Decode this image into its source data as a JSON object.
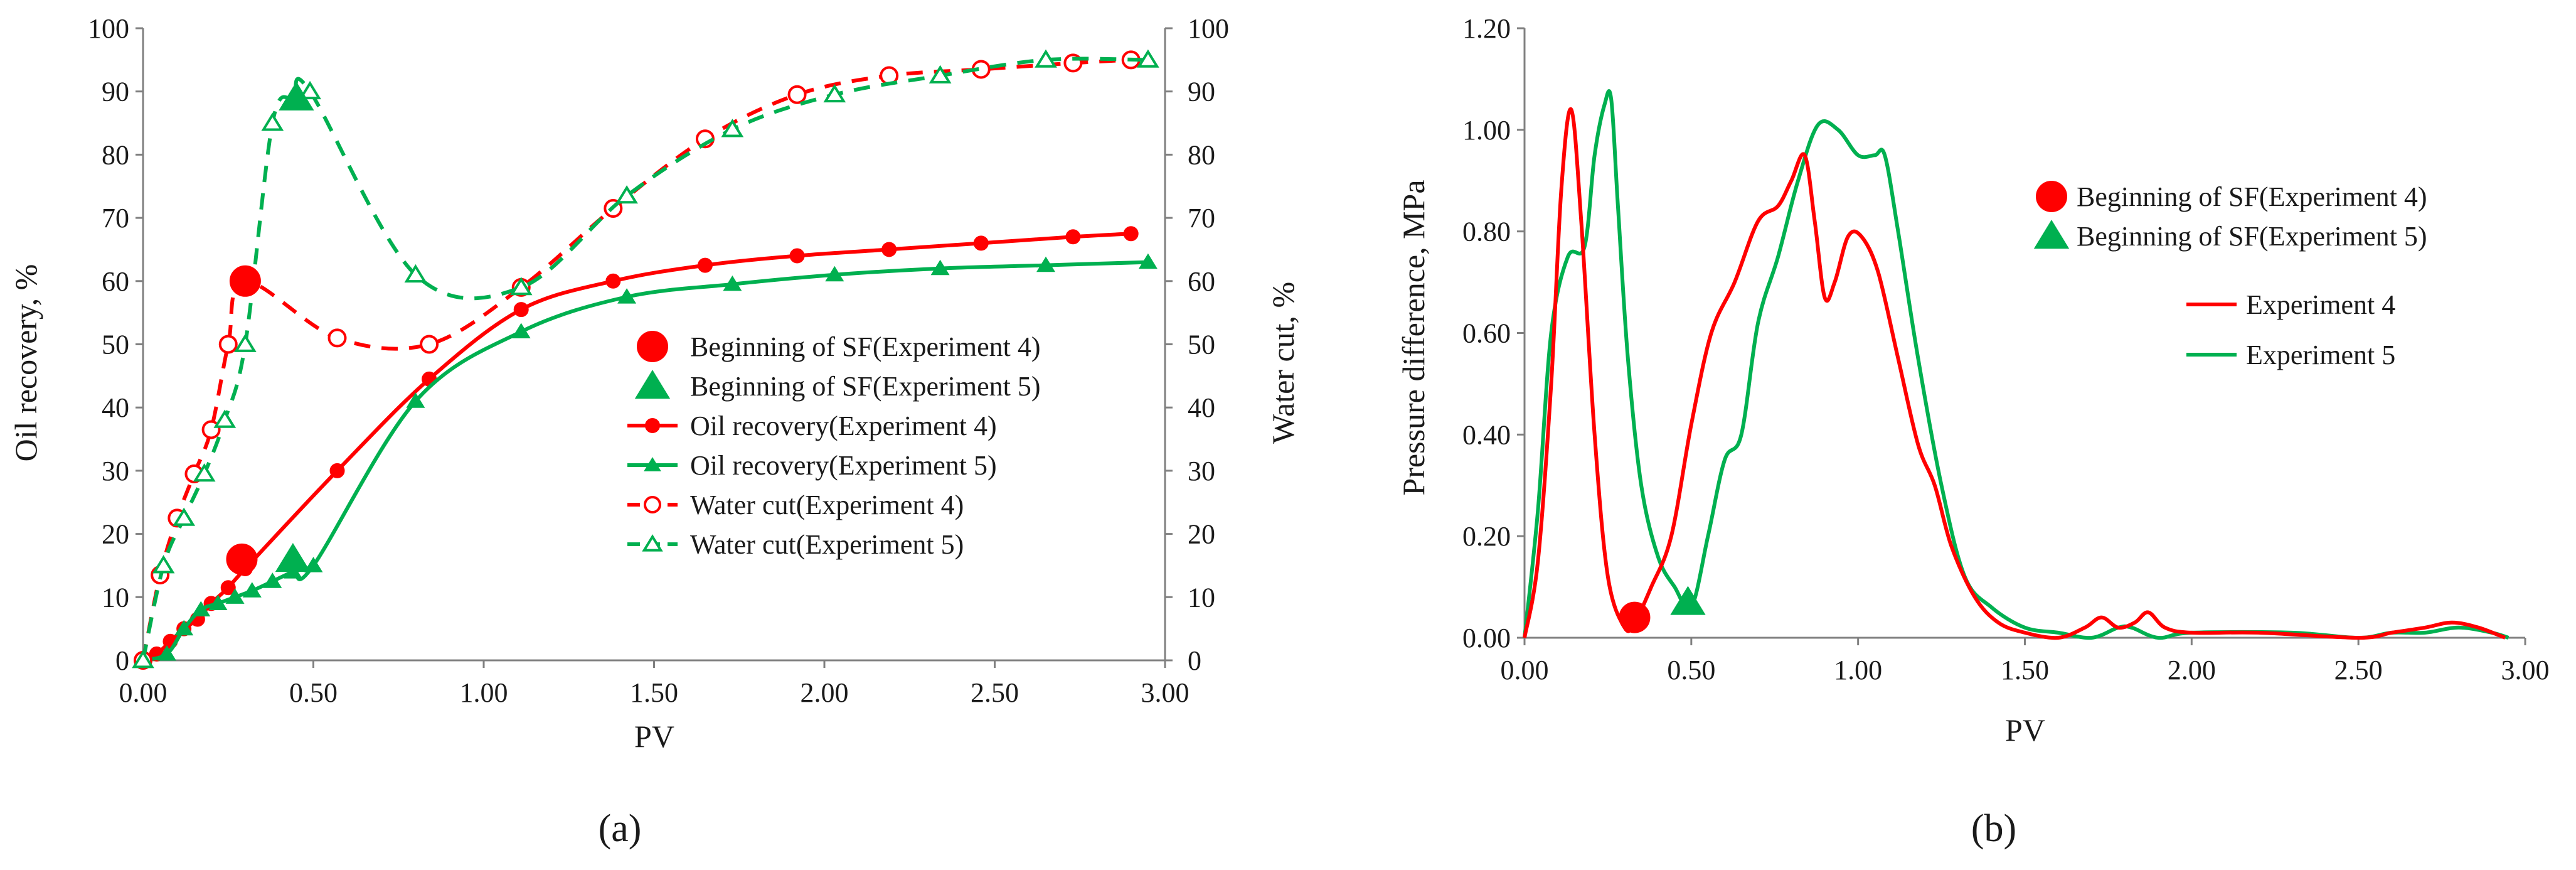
{
  "colors": {
    "red": "#ff0000",
    "green": "#00b050",
    "axis": "#808080",
    "text": "#1a1a1a"
  },
  "chart_data": [
    {
      "type": "line",
      "panel_label": "(a)",
      "xlabel": "PV",
      "ylabel": "Oil recovery, %",
      "y2label": "Water cut, %",
      "xlim": [
        0,
        3
      ],
      "ylim": [
        0,
        100
      ],
      "y2lim": [
        0,
        100
      ],
      "xticks": [
        "0.00",
        "0.50",
        "1.00",
        "1.50",
        "2.00",
        "2.50",
        "3.00"
      ],
      "yticks": [
        "0",
        "10",
        "20",
        "30",
        "40",
        "50",
        "60",
        "70",
        "80",
        "90",
        "100"
      ],
      "y2ticks": [
        "0",
        "10",
        "20",
        "30",
        "40",
        "50",
        "60",
        "70",
        "80",
        "90",
        "100"
      ],
      "grid": false,
      "legend_position": "center-right",
      "series": [
        {
          "name": "Oil recovery(Experiment 4)",
          "axis": "left",
          "color": "#ff0000",
          "style": "solid",
          "marker": "filled-circle",
          "x": [
            0.0,
            0.04,
            0.08,
            0.12,
            0.16,
            0.2,
            0.25,
            0.3,
            0.57,
            0.84,
            1.11,
            1.38,
            1.65,
            1.92,
            2.19,
            2.46,
            2.73,
            2.9
          ],
          "y": [
            0,
            1,
            3,
            5,
            6.5,
            9,
            11.5,
            14.5,
            30,
            44.5,
            55.5,
            60,
            62.5,
            64,
            65,
            66,
            67,
            67.5
          ]
        },
        {
          "name": "Oil recovery(Experiment 5)",
          "axis": "left",
          "color": "#00b050",
          "style": "solid",
          "marker": "filled-triangle",
          "x": [
            0.0,
            0.07,
            0.12,
            0.17,
            0.22,
            0.27,
            0.32,
            0.38,
            0.44,
            0.5,
            0.8,
            1.11,
            1.42,
            1.73,
            2.03,
            2.34,
            2.65,
            2.95
          ],
          "y": [
            0,
            1,
            5,
            8,
            9,
            10,
            11,
            12.5,
            14,
            15,
            41,
            52,
            57.5,
            59.5,
            61,
            62,
            62.5,
            63
          ]
        },
        {
          "name": "Water cut(Experiment 4)",
          "axis": "right",
          "color": "#ff0000",
          "style": "dashed",
          "marker": "open-circle",
          "x": [
            0.0,
            0.05,
            0.1,
            0.15,
            0.2,
            0.25,
            0.3,
            0.57,
            0.84,
            1.11,
            1.38,
            1.65,
            1.92,
            2.19,
            2.46,
            2.73,
            2.9
          ],
          "y": [
            0,
            13.5,
            22.5,
            29.5,
            36.5,
            50,
            60,
            51,
            50,
            59,
            71.5,
            82.5,
            89.5,
            92.5,
            93.5,
            94.5,
            95
          ]
        },
        {
          "name": "Water cut(Experiment 5)",
          "axis": "right",
          "color": "#00b050",
          "style": "dashed",
          "marker": "open-triangle",
          "x": [
            0.0,
            0.06,
            0.12,
            0.18,
            0.24,
            0.3,
            0.38,
            0.44,
            0.49,
            0.8,
            1.11,
            1.42,
            1.73,
            2.03,
            2.34,
            2.65,
            2.95
          ],
          "y": [
            0,
            15,
            22.5,
            29.5,
            38,
            50,
            85,
            89,
            90,
            61,
            59,
            73.5,
            84,
            89.5,
            92.5,
            95,
            95
          ]
        },
        {
          "name": "Beginning  of SF(Experiment 4)",
          "axis": "left",
          "color": "#ff0000",
          "marker": "big-circle",
          "x": [
            0.29,
            0.3
          ],
          "y": [
            16,
            60
          ]
        },
        {
          "name": "Beginning  of SF(Experiment 5)",
          "axis": "left",
          "color": "#00b050",
          "marker": "big-triangle",
          "x": [
            0.44,
            0.45
          ],
          "y": [
            16,
            89
          ]
        }
      ]
    },
    {
      "type": "line",
      "panel_label": "(b)",
      "xlabel": "PV",
      "ylabel": "Pressure difference, MPa",
      "xlim": [
        0,
        3
      ],
      "ylim": [
        0,
        1.2
      ],
      "xticks": [
        "0.00",
        "0.50",
        "1.00",
        "1.50",
        "2.00",
        "2.50",
        "3.00"
      ],
      "yticks": [
        "0.00",
        "0.20",
        "0.40",
        "0.60",
        "0.80",
        "1.00",
        "1.20"
      ],
      "grid": false,
      "legend_position": "center-right",
      "series": [
        {
          "name": "Beginning  of SF(Experiment 4)",
          "color": "#ff0000",
          "marker": "big-circle",
          "x": [
            0.33
          ],
          "y": [
            0.04
          ]
        },
        {
          "name": "Beginning  of SF(Experiment 5)",
          "color": "#00b050",
          "marker": "big-triangle",
          "x": [
            0.49
          ],
          "y": [
            0.07
          ]
        },
        {
          "name": "Experiment 4",
          "color": "#ff0000",
          "style": "solid",
          "x": [
            0.0,
            0.04,
            0.08,
            0.11,
            0.14,
            0.17,
            0.21,
            0.25,
            0.3,
            0.33,
            0.38,
            0.44,
            0.5,
            0.56,
            0.63,
            0.7,
            0.76,
            0.8,
            0.84,
            0.87,
            0.9,
            0.93,
            0.97,
            1.01,
            1.06,
            1.12,
            1.18,
            1.23,
            1.28,
            1.35,
            1.42,
            1.5,
            1.6,
            1.68,
            1.73,
            1.78,
            1.83,
            1.87,
            1.92,
            2.0,
            2.2,
            2.5,
            2.6,
            2.7,
            2.78,
            2.86,
            2.94
          ],
          "y": [
            0.0,
            0.15,
            0.5,
            0.88,
            1.04,
            0.82,
            0.4,
            0.12,
            0.02,
            0.03,
            0.1,
            0.2,
            0.42,
            0.6,
            0.7,
            0.82,
            0.85,
            0.9,
            0.95,
            0.82,
            0.67,
            0.7,
            0.79,
            0.79,
            0.72,
            0.55,
            0.38,
            0.3,
            0.18,
            0.08,
            0.03,
            0.01,
            0.0,
            0.02,
            0.04,
            0.02,
            0.03,
            0.05,
            0.02,
            0.01,
            0.01,
            0.0,
            0.01,
            0.02,
            0.03,
            0.02,
            0.0
          ]
        },
        {
          "name": "Experiment 5",
          "color": "#00b050",
          "style": "solid",
          "x": [
            0.0,
            0.04,
            0.08,
            0.13,
            0.18,
            0.21,
            0.24,
            0.26,
            0.28,
            0.31,
            0.35,
            0.4,
            0.45,
            0.5,
            0.55,
            0.6,
            0.65,
            0.7,
            0.76,
            0.82,
            0.88,
            0.94,
            1.0,
            1.05,
            1.08,
            1.12,
            1.18,
            1.25,
            1.32,
            1.4,
            1.5,
            1.6,
            1.7,
            1.78,
            1.82,
            1.9,
            2.0,
            2.3,
            2.5,
            2.6,
            2.7,
            2.8,
            2.9,
            2.95
          ],
          "y": [
            0.0,
            0.25,
            0.6,
            0.75,
            0.77,
            0.95,
            1.05,
            1.06,
            0.85,
            0.55,
            0.3,
            0.16,
            0.1,
            0.06,
            0.2,
            0.35,
            0.4,
            0.62,
            0.75,
            0.9,
            1.01,
            1.0,
            0.95,
            0.95,
            0.95,
            0.8,
            0.55,
            0.3,
            0.12,
            0.06,
            0.02,
            0.01,
            0.0,
            0.02,
            0.02,
            0.0,
            0.01,
            0.01,
            0.0,
            0.01,
            0.01,
            0.02,
            0.01,
            0.0
          ]
        }
      ]
    }
  ]
}
